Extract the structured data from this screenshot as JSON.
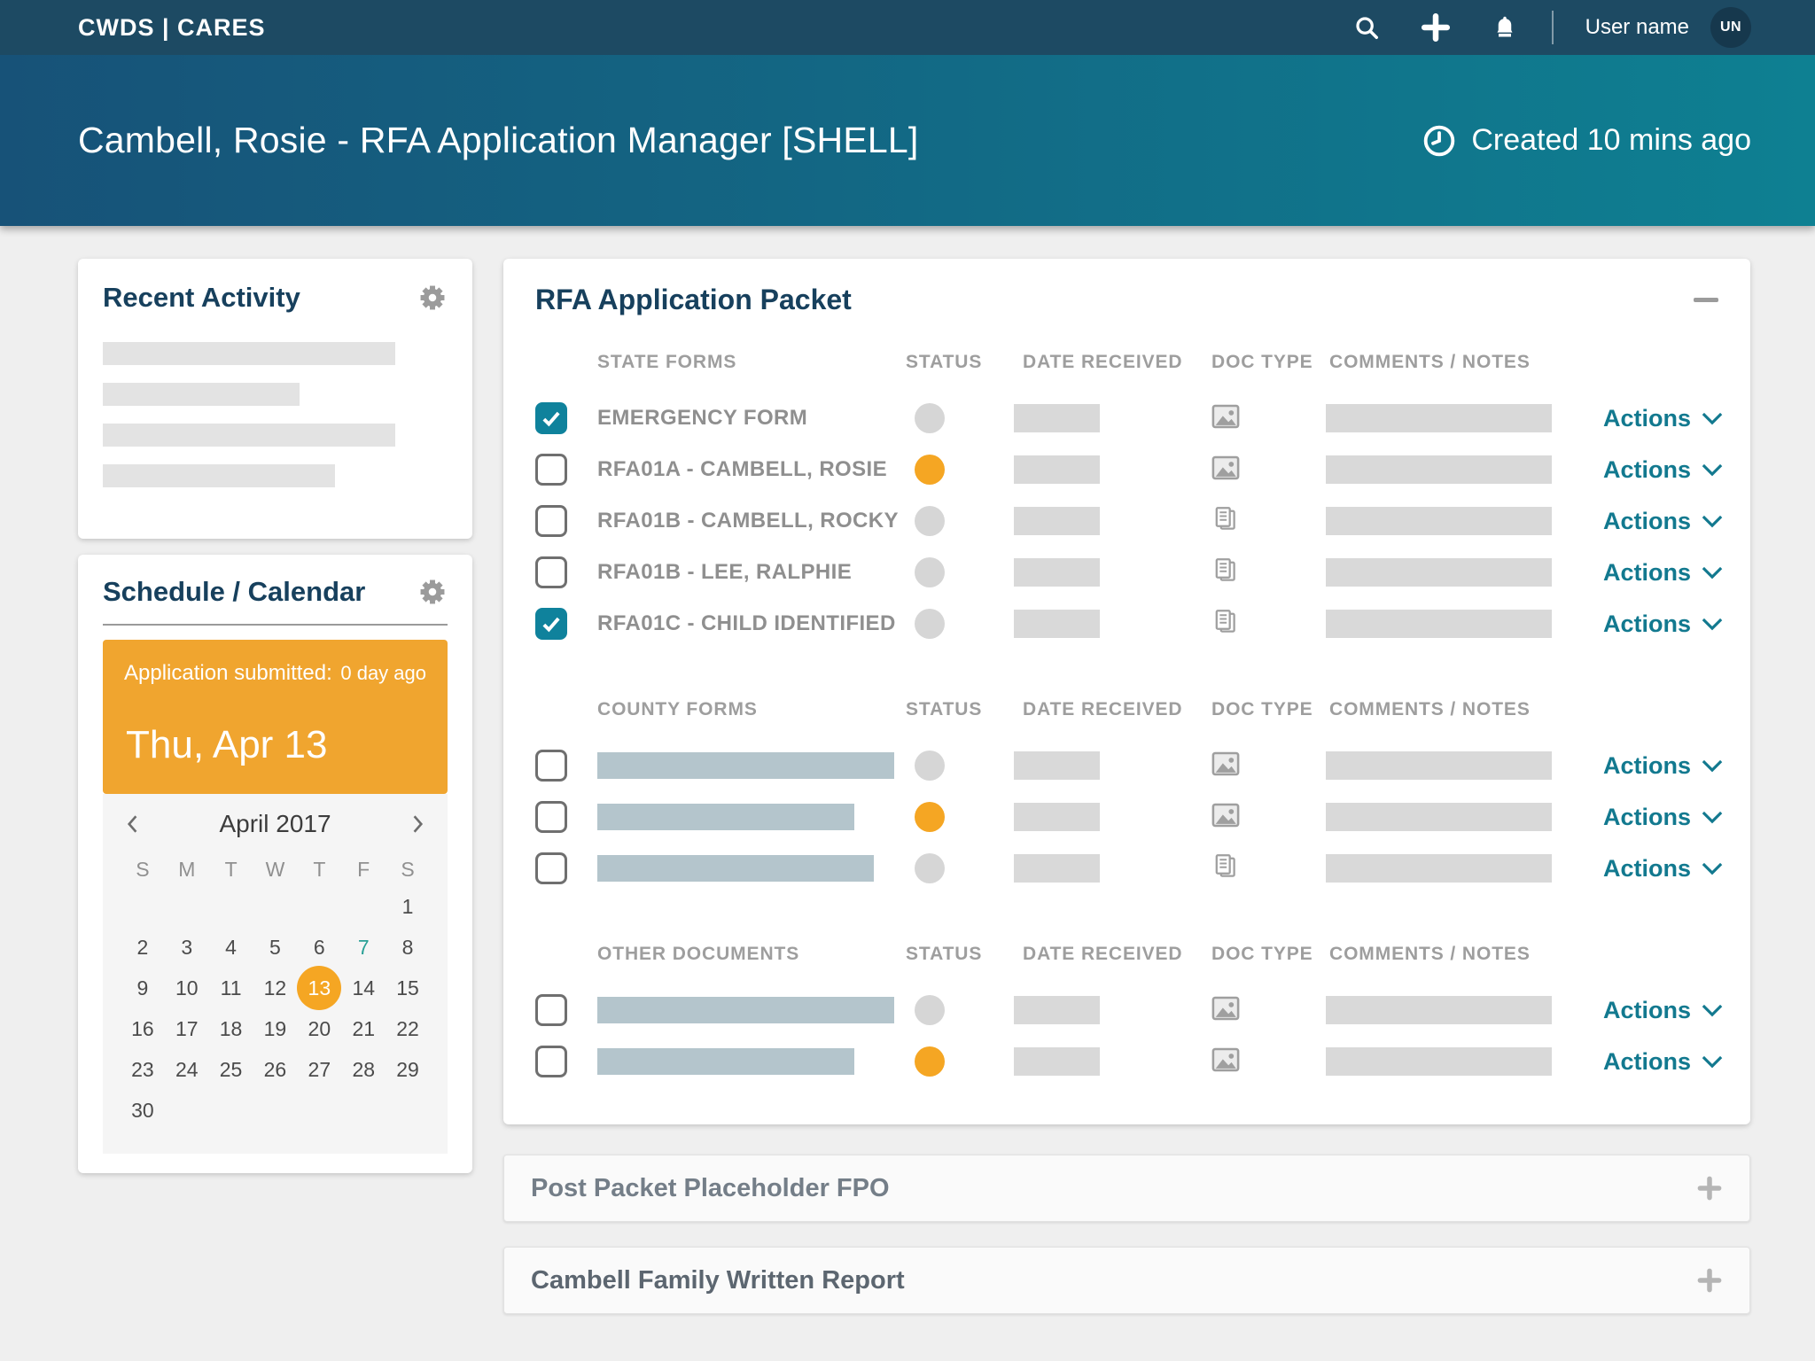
{
  "colors": {
    "page_bg": "#efefef",
    "navbar_bg": "#1d4a63",
    "header_gradient_left": "#175278",
    "header_gradient_right": "#0e8092",
    "card_title": "#17405d",
    "accent_teal": "#0f829c",
    "link_teal": "#12798f",
    "banner_orange": "#f0a52f",
    "status_orange": "#f5a623",
    "status_gray": "#d6d6d6",
    "placeholder_gray": "#e3e3e3",
    "placeholder_blue_gray": "#b4c5cc",
    "avatar_bg": "#16384d",
    "calendar_today_teal": "#2aa096"
  },
  "icons": {
    "navbar": [
      "search-icon",
      "add-icon",
      "notifications-icon"
    ],
    "header": "clock-icon",
    "card_settings": "gear-icon",
    "packet_collapse": "minus-icon",
    "panel_expand": "plus-icon",
    "doc_types": {
      "image": "image-icon",
      "file": "document-icon"
    }
  },
  "navbar": {
    "brand": "CWDS | CARES",
    "user_name": "User name",
    "avatar_initials": "UN"
  },
  "header": {
    "title": "Cambell, Rosie - RFA Application Manager [SHELL]",
    "created_text": "Created 10 mins ago"
  },
  "recent_activity": {
    "title": "Recent Activity",
    "placeholder_bar_widths": [
      330,
      222,
      330,
      262
    ]
  },
  "schedule": {
    "title": "Schedule / Calendar",
    "banner": {
      "label": "Application submitted:",
      "time_ago": "0 day ago",
      "date": "Thu, Apr 13"
    },
    "calendar": {
      "month_label": "April 2017",
      "weekdays": [
        "S",
        "M",
        "T",
        "W",
        "T",
        "F",
        "S"
      ],
      "weeks": [
        [
          "",
          "",
          "",
          "",
          "",
          "",
          "1"
        ],
        [
          "2",
          "3",
          "4",
          "5",
          "6",
          "7",
          "8"
        ],
        [
          "9",
          "10",
          "11",
          "12",
          "13",
          "14",
          "15"
        ],
        [
          "16",
          "17",
          "18",
          "19",
          "20",
          "21",
          "22"
        ],
        [
          "23",
          "24",
          "25",
          "26",
          "27",
          "28",
          "29"
        ],
        [
          "30",
          "",
          "",
          "",
          "",
          "",
          ""
        ]
      ],
      "selected_day": "13",
      "highlighted_day": "7"
    }
  },
  "packet": {
    "title": "RFA Application Packet",
    "columns": [
      "STATUS",
      "DATE RECEIVED",
      "DOC TYPE",
      "COMMENTS / NOTES"
    ],
    "actions_label": "Actions",
    "sections": [
      {
        "heading": "STATE FORMS",
        "rows": [
          {
            "label": "EMERGENCY FORM",
            "checked": true,
            "status": "gray",
            "doc_type": "image"
          },
          {
            "label": "RFA01A - CAMBELL, ROSIE",
            "checked": false,
            "status": "orange",
            "doc_type": "image"
          },
          {
            "label": "RFA01B - CAMBELL, ROCKY",
            "checked": false,
            "status": "gray",
            "doc_type": "file"
          },
          {
            "label": "RFA01B - LEE, RALPHIE",
            "checked": false,
            "status": "gray",
            "doc_type": "file"
          },
          {
            "label": "RFA01C - CHILD IDENTIFIED",
            "checked": true,
            "status": "gray",
            "doc_type": "file"
          }
        ]
      },
      {
        "heading": "COUNTY FORMS",
        "rows": [
          {
            "label": "",
            "label_bar_width": 335,
            "checked": false,
            "status": "gray",
            "doc_type": "image"
          },
          {
            "label": "",
            "label_bar_width": 290,
            "checked": false,
            "status": "orange",
            "doc_type": "image"
          },
          {
            "label": "",
            "label_bar_width": 312,
            "checked": false,
            "status": "gray",
            "doc_type": "file"
          }
        ]
      },
      {
        "heading": "OTHER DOCUMENTS",
        "rows": [
          {
            "label": "",
            "label_bar_width": 335,
            "checked": false,
            "status": "gray",
            "doc_type": "image"
          },
          {
            "label": "",
            "label_bar_width": 290,
            "checked": false,
            "status": "orange",
            "doc_type": "image"
          }
        ]
      }
    ]
  },
  "panels": [
    {
      "title": "Post Packet Placeholder FPO"
    },
    {
      "title": "Cambell Family Written Report"
    }
  ]
}
